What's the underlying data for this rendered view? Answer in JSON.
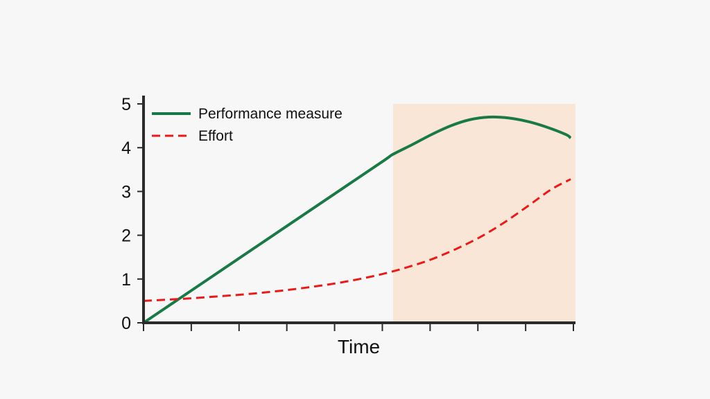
{
  "chart_data": {
    "type": "line",
    "title": "",
    "xlabel": "Time",
    "ylabel": "",
    "xlim": [
      0,
      9
    ],
    "ylim": [
      0,
      5
    ],
    "y_ticks": [
      0,
      1,
      2,
      3,
      4,
      5
    ],
    "x_tick_count": 10,
    "x_tick_labels": [],
    "grid": false,
    "legend_position": "top-left",
    "highlight_region": {
      "x": [
        5.2,
        9
      ],
      "y": [
        0,
        5
      ],
      "color": "#fae6d6"
    },
    "series": [
      {
        "name": "Performance measure",
        "style": "solid",
        "color": "#1a7a45",
        "x": [
          0,
          1,
          2,
          3,
          4,
          5,
          5.2,
          5.6,
          6.0,
          6.4,
          6.8,
          7.2,
          7.6,
          8.0,
          8.4,
          8.8,
          8.9
        ],
        "y": [
          0,
          0.74,
          1.48,
          2.22,
          2.96,
          3.7,
          3.85,
          4.07,
          4.3,
          4.5,
          4.64,
          4.7,
          4.68,
          4.6,
          4.47,
          4.3,
          4.22
        ]
      },
      {
        "name": "Effort",
        "style": "dashed",
        "color": "#e81b1b",
        "x": [
          0,
          0.5,
          1,
          1.5,
          2,
          2.5,
          3,
          3.5,
          4,
          4.5,
          5,
          5.5,
          6,
          6.5,
          7,
          7.5,
          8,
          8.5,
          8.9
        ],
        "y": [
          0.5,
          0.53,
          0.56,
          0.6,
          0.64,
          0.69,
          0.75,
          0.82,
          0.9,
          1.0,
          1.12,
          1.27,
          1.45,
          1.68,
          1.95,
          2.28,
          2.66,
          3.05,
          3.28
        ]
      }
    ]
  }
}
